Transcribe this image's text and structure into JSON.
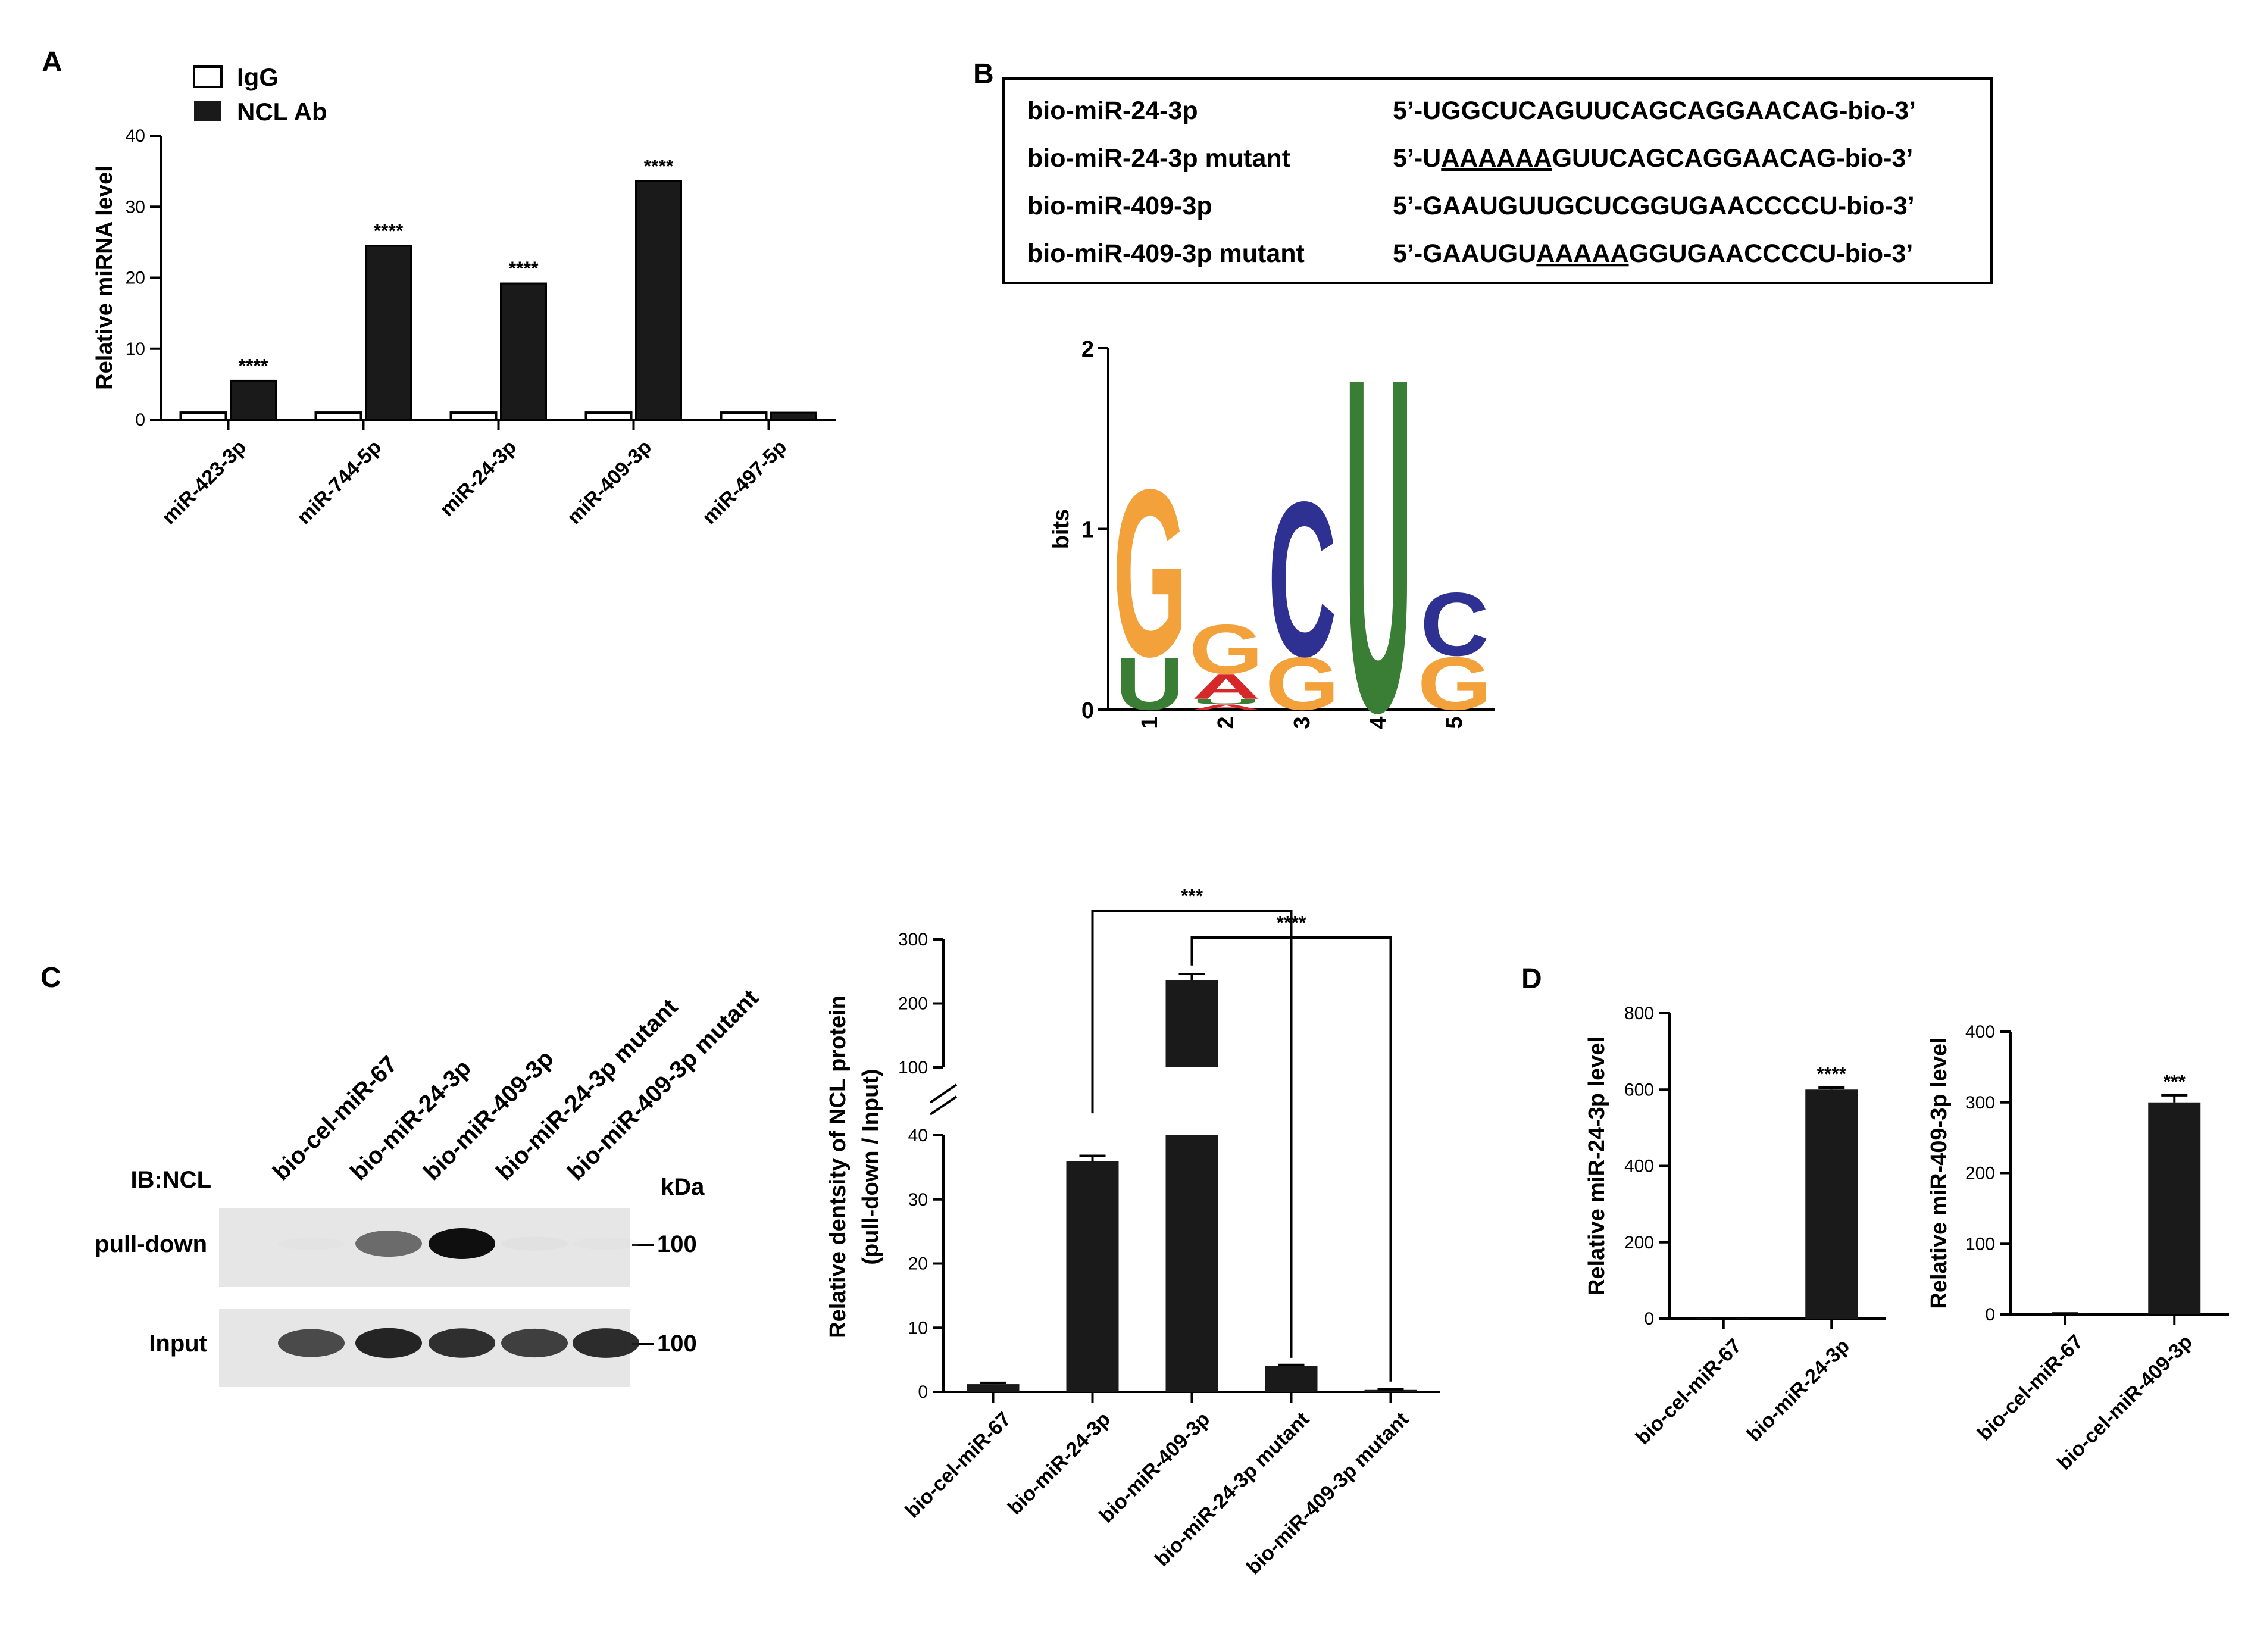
{
  "panel_labels": {
    "A": "A",
    "B": "B",
    "C": "C",
    "D": "D"
  },
  "colors": {
    "bar_fill": "#1a1a1a",
    "igg_fill": "#ffffff",
    "logo_G": "#f2a13b",
    "logo_C": "#2e3192",
    "logo_U": "#3a7d34",
    "logo_A": "#d62828"
  },
  "chart_data": [
    {
      "id": "panelA",
      "type": "bar",
      "ylabel": "Relative miRNA level",
      "ylim": [
        0,
        40
      ],
      "yticks": [
        0,
        10,
        20,
        30,
        40
      ],
      "categories": [
        "miR-423-3p",
        "miR-744-5p",
        "miR-24-3p",
        "miR-409-3p",
        "miR-497-5p"
      ],
      "series": [
        {
          "name": "IgG",
          "values": [
            1.0,
            1.0,
            1.0,
            1.0,
            1.0
          ]
        },
        {
          "name": "NCL Ab",
          "values": [
            5.5,
            24.5,
            19.2,
            33.6,
            1.0
          ]
        }
      ],
      "annotations": [
        "****",
        "****",
        "****",
        "****",
        ""
      ],
      "legend": "top-left"
    },
    {
      "id": "panelC",
      "type": "bar",
      "ylabel_line1": "Relative dentsity of NCL protein",
      "ylabel_line2": "(pull-down / Input)",
      "axis_break": true,
      "lower_ylim": [
        0,
        40
      ],
      "lower_yticks": [
        0,
        10,
        20,
        30,
        40
      ],
      "upper_ylim": [
        100,
        300
      ],
      "upper_yticks": [
        100,
        200,
        300
      ],
      "categories": [
        "bio-cel-miR-67",
        "bio-miR-24-3p",
        "bio-miR-409-3p",
        "bio-miR-24-3p mutant",
        "bio-miR-409-3p mutant"
      ],
      "values": [
        1.2,
        36.0,
        236.0,
        4.0,
        0.3
      ],
      "errors": [
        0.2,
        0.8,
        10.0,
        0.2,
        0.1
      ],
      "comparisons": [
        {
          "from": 1,
          "to": 3,
          "label": "***"
        },
        {
          "from": 2,
          "to": 4,
          "label": "****"
        }
      ]
    },
    {
      "id": "panelD1",
      "type": "bar",
      "ylabel": "Relative miR-24-3p level",
      "ylim": [
        0,
        800
      ],
      "yticks": [
        0,
        200,
        400,
        600,
        800
      ],
      "categories": [
        "bio-cel-miR-67",
        "bio-miR-24-3p"
      ],
      "values": [
        1,
        600
      ],
      "errors": [
        0.5,
        5
      ],
      "annotations": [
        "",
        "****"
      ]
    },
    {
      "id": "panelD2",
      "type": "bar",
      "ylabel": "Relative miR-409-3p level",
      "ylim": [
        0,
        400
      ],
      "yticks": [
        0,
        100,
        200,
        300,
        400
      ],
      "categories": [
        "bio-cel-miR-67",
        "bio-cel-miR-409-3p"
      ],
      "values": [
        1,
        300
      ],
      "errors": [
        0.5,
        10
      ],
      "annotations": [
        "",
        "***"
      ]
    }
  ],
  "sequences": [
    {
      "name": "bio-miR-24-3p",
      "prefix": "5’-U",
      "underlined": "",
      "rest": "GGCUCAGUUCAGCAGGAACAG-bio-3’"
    },
    {
      "name": "bio-miR-24-3p mutant",
      "prefix": "5’-U",
      "underlined": "AAAAAA",
      "rest": "GUUCAGCAGGAACAG-bio-3’"
    },
    {
      "name": "bio-miR-409-3p",
      "prefix": "5’-GAAUGU",
      "underlined": "",
      "rest": "UGCUCGGUGAACCCCU-bio-3’"
    },
    {
      "name": "bio-miR-409-3p mutant",
      "prefix": "5’-GAAUGU",
      "underlined": "AAAAA",
      "rest": "GGUGAACCCCU-bio-3’"
    }
  ],
  "seq_logo": {
    "ylabel": "bits",
    "yticks": [
      0,
      1,
      2
    ],
    "positions": [
      "1",
      "2",
      "3",
      "4",
      "5"
    ],
    "stacks": [
      [
        {
          "letter": "U",
          "bits": 0.3
        },
        {
          "letter": "G",
          "bits": 0.95
        }
      ],
      [
        {
          "letter": "A",
          "bits": 0.03
        },
        {
          "letter": "U",
          "bits": 0.03
        },
        {
          "letter": "A",
          "bits": 0.14
        },
        {
          "letter": "G",
          "bits": 0.28
        }
      ],
      [
        {
          "letter": "G",
          "bits": 0.3
        },
        {
          "letter": "C",
          "bits": 0.88
        }
      ],
      [
        {
          "letter": "U",
          "bits": 1.9
        }
      ],
      [
        {
          "letter": "G",
          "bits": 0.3
        },
        {
          "letter": "C",
          "bits": 0.36
        }
      ]
    ]
  },
  "western_blot": {
    "lanes": [
      "bio-cel-miR-67",
      "bio-miR-24-3p",
      "bio-miR-409-3p",
      "bio-miR-24-3p mutant",
      "bio-miR-409-3p mutant"
    ],
    "antibody": "IB:NCL",
    "unit": "kDa",
    "rows": [
      {
        "label": "pull-down",
        "marker": "100",
        "intensity": [
          0.03,
          0.75,
          1.0,
          0.1,
          0.02
        ]
      },
      {
        "label": "Input",
        "marker": "100",
        "intensity": [
          0.85,
          0.95,
          0.92,
          0.88,
          0.93
        ]
      }
    ]
  }
}
